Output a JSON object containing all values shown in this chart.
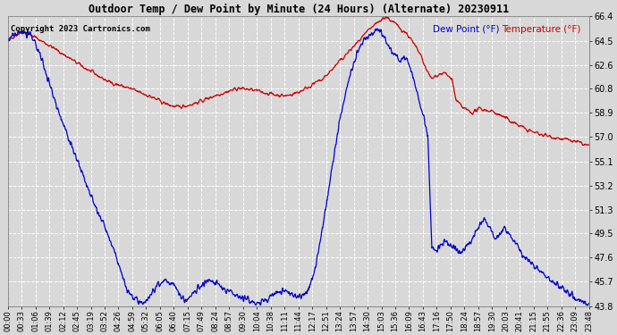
{
  "title": "Outdoor Temp / Dew Point by Minute (24 Hours) (Alternate) 20230911",
  "copyright": "Copyright 2023 Cartronics.com",
  "legend_dew": "Dew Point (°F)",
  "legend_temp": "Temperature (°F)",
  "y_min": 43.8,
  "y_max": 66.4,
  "y_ticks": [
    43.8,
    45.7,
    47.6,
    49.5,
    51.3,
    53.2,
    55.1,
    57.0,
    58.9,
    60.8,
    62.6,
    64.5,
    66.4
  ],
  "background_color": "#d8d8d8",
  "grid_color": "#ffffff",
  "temp_color": "#cc0000",
  "dew_color": "#0000cc",
  "title_color": "#000000",
  "copyright_color": "#000000",
  "x_labels": [
    "00:00",
    "00:33",
    "01:06",
    "01:39",
    "02:12",
    "02:45",
    "03:19",
    "03:52",
    "04:26",
    "04:59",
    "05:32",
    "06:05",
    "06:40",
    "07:15",
    "07:49",
    "08:24",
    "08:57",
    "09:30",
    "10:04",
    "10:38",
    "11:11",
    "11:44",
    "12:17",
    "12:51",
    "13:24",
    "13:57",
    "14:30",
    "15:03",
    "15:36",
    "16:09",
    "16:43",
    "17:16",
    "17:50",
    "18:24",
    "18:57",
    "19:30",
    "20:03",
    "20:41",
    "21:15",
    "21:55",
    "22:36",
    "23:09",
    "23:48"
  ]
}
